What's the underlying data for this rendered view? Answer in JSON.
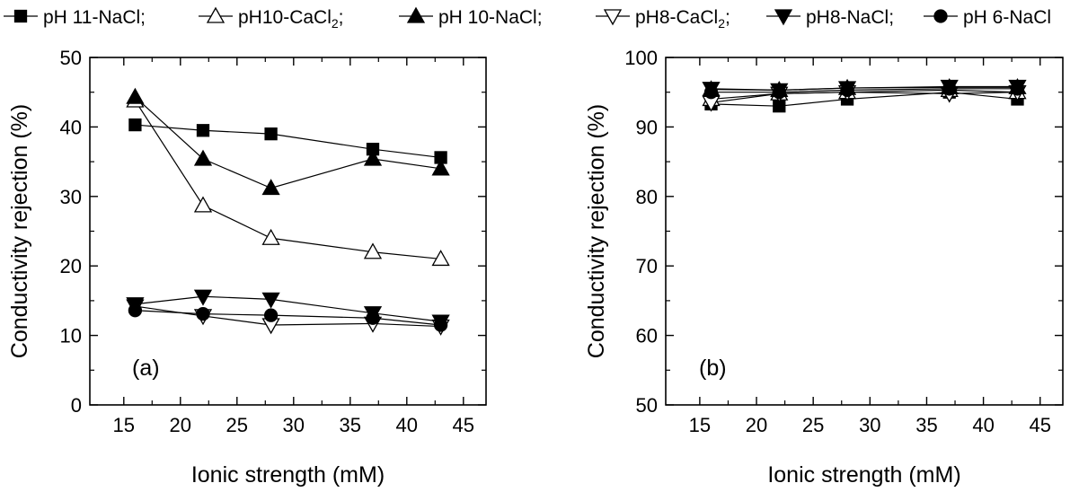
{
  "legend": {
    "entries": [
      {
        "label": "pH 11-NaCl;",
        "marker": "square",
        "filled": true
      },
      {
        "label": "pH10-CaCl",
        "sub": "2",
        "suffix": ";",
        "marker": "triangle-up",
        "filled": false
      },
      {
        "label": "pH 10-NaCl;",
        "marker": "triangle-up",
        "filled": true
      },
      {
        "label": "pH8-CaCl",
        "sub": "2",
        "suffix": ";",
        "marker": "triangle-down",
        "filled": false
      },
      {
        "label": "pH8-NaCl;",
        "marker": "triangle-down",
        "filled": true
      },
      {
        "label": "pH 6-NaCl",
        "marker": "circle",
        "filled": true
      }
    ]
  },
  "chart_data": [
    {
      "type": "line",
      "panel_label": "(a)",
      "xlabel": "Ionic strength (mM)",
      "ylabel": "Conductivity rejection (%)",
      "xlim": [
        12,
        47
      ],
      "ylim": [
        0,
        50
      ],
      "xticks": [
        15,
        20,
        25,
        30,
        35,
        40,
        45
      ],
      "yticks": [
        0,
        10,
        20,
        30,
        40,
        50
      ],
      "x": [
        16,
        22,
        28,
        37,
        43
      ],
      "series": [
        {
          "name": "pH 11-NaCl",
          "marker": "square",
          "filled": true,
          "values": [
            40.3,
            39.5,
            39.0,
            36.8,
            35.6
          ]
        },
        {
          "name": "pH10-CaCl2",
          "marker": "triangle-up",
          "filled": false,
          "values": [
            43.8,
            28.7,
            24.0,
            22.0,
            21.0
          ]
        },
        {
          "name": "pH 10-NaCl",
          "marker": "triangle-up",
          "filled": true,
          "values": [
            44.3,
            35.4,
            31.2,
            35.4,
            34.0
          ]
        },
        {
          "name": "pH8-CaCl2",
          "marker": "triangle-down",
          "filled": false,
          "values": [
            14.2,
            12.8,
            11.5,
            11.7,
            11.3
          ]
        },
        {
          "name": "pH8-NaCl",
          "marker": "triangle-down",
          "filled": true,
          "values": [
            14.5,
            15.6,
            15.2,
            13.2,
            12.0
          ]
        },
        {
          "name": "pH 6-NaCl",
          "marker": "circle",
          "filled": true,
          "values": [
            13.6,
            13.1,
            12.9,
            12.5,
            11.5
          ]
        }
      ]
    },
    {
      "type": "line",
      "panel_label": "(b)",
      "xlabel": "Ionic strength (mM)",
      "ylabel": "Conductivity rejection (%)",
      "xlim": [
        12,
        47
      ],
      "ylim": [
        50,
        100
      ],
      "xticks": [
        15,
        20,
        25,
        30,
        35,
        40,
        45
      ],
      "yticks": [
        50,
        60,
        70,
        80,
        90,
        100
      ],
      "x": [
        16,
        22,
        28,
        37,
        43
      ],
      "series": [
        {
          "name": "pH 11-NaCl",
          "marker": "square",
          "filled": true,
          "values": [
            93.3,
            93.0,
            94.0,
            95.0,
            94.0
          ]
        },
        {
          "name": "pH10-CaCl2",
          "marker": "triangle-up",
          "filled": false,
          "values": [
            94.0,
            94.8,
            95.0,
            95.3,
            95.0
          ]
        },
        {
          "name": "pH 10-NaCl",
          "marker": "triangle-up",
          "filled": true,
          "values": [
            95.4,
            95.3,
            95.6,
            95.7,
            95.7
          ]
        },
        {
          "name": "pH8-CaCl2",
          "marker": "triangle-down",
          "filled": false,
          "values": [
            93.5,
            94.8,
            95.0,
            94.8,
            95.0
          ]
        },
        {
          "name": "pH8-NaCl",
          "marker": "triangle-down",
          "filled": true,
          "values": [
            95.5,
            95.3,
            95.6,
            95.8,
            95.8
          ]
        },
        {
          "name": "pH 6-NaCl",
          "marker": "circle",
          "filled": true,
          "values": [
            95.0,
            95.0,
            95.3,
            95.5,
            95.5
          ]
        }
      ]
    }
  ]
}
